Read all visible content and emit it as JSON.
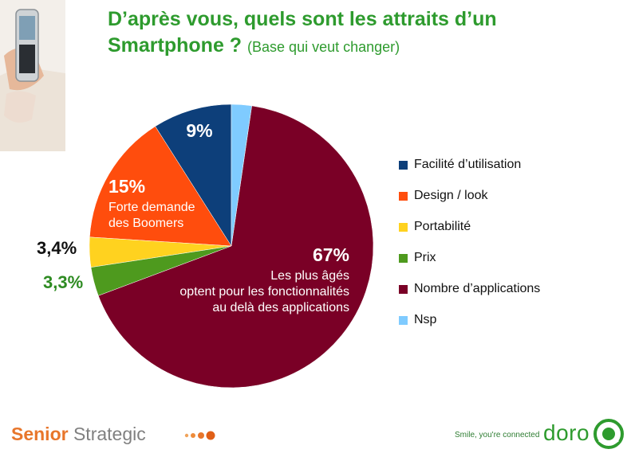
{
  "title": {
    "main_line1": "D’après vous, quels sont les attraits d’un",
    "main_line2": "Smartphone ?",
    "subtitle": "(Base qui veut changer)"
  },
  "chart_data": {
    "type": "pie",
    "slices": [
      {
        "name": "Facilité d’utilisation",
        "value": 9,
        "label": "9%",
        "color": "#0d3f7a"
      },
      {
        "name": "Design / look",
        "value": 15,
        "label": "15%",
        "note": [
          "Forte demande",
          "des Boomers"
        ],
        "color": "#ff4d0d"
      },
      {
        "name": "Portabilité",
        "value": 3.4,
        "label": "3,4%",
        "color": "#ffd21f"
      },
      {
        "name": "Prix",
        "value": 3.3,
        "label": "3,3%",
        "color": "#4e9a1e"
      },
      {
        "name": "Nombre d’applications",
        "value": 67,
        "label": "67%",
        "note": [
          "Les plus âgés",
          "optent pour les fonctionnalités",
          "au delà des applications"
        ],
        "color": "#7a0026"
      },
      {
        "name": "Nsp",
        "value": 2.3,
        "color": "#7fcbff"
      }
    ],
    "legend_position": "right"
  },
  "footer": {
    "brand_bold": "Senior",
    "brand_rest": "Strategic",
    "tagline": "Smile, you're connected",
    "logo_text": "doro"
  },
  "colors": {
    "title_green": "#2e9b2e",
    "brand_orange": "#e8762b",
    "brand_grey": "#808080"
  }
}
